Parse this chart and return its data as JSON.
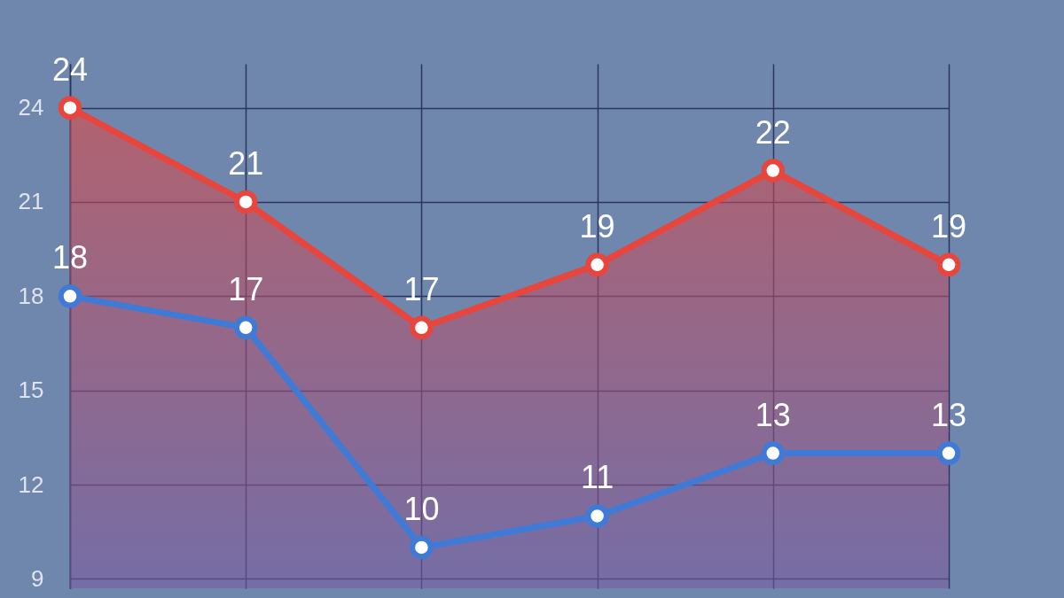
{
  "chart_data": {
    "type": "line",
    "categories": [
      null,
      null,
      null,
      null,
      null,
      null
    ],
    "series": [
      {
        "type": "area",
        "color": "#e8453c",
        "values": [
          24,
          21,
          17,
          19,
          22,
          19
        ]
      },
      {
        "color": "#3f7bd6",
        "values": [
          18,
          17,
          10,
          11,
          13,
          13
        ]
      }
    ],
    "ylim": [
      8.7,
      25.4
    ],
    "yticks": [
      9,
      12,
      15,
      18,
      21,
      24
    ],
    "grid": true,
    "tick_labels": "y",
    "marker": "circle",
    "line_style": "solid",
    "data_labels": true
  }
}
